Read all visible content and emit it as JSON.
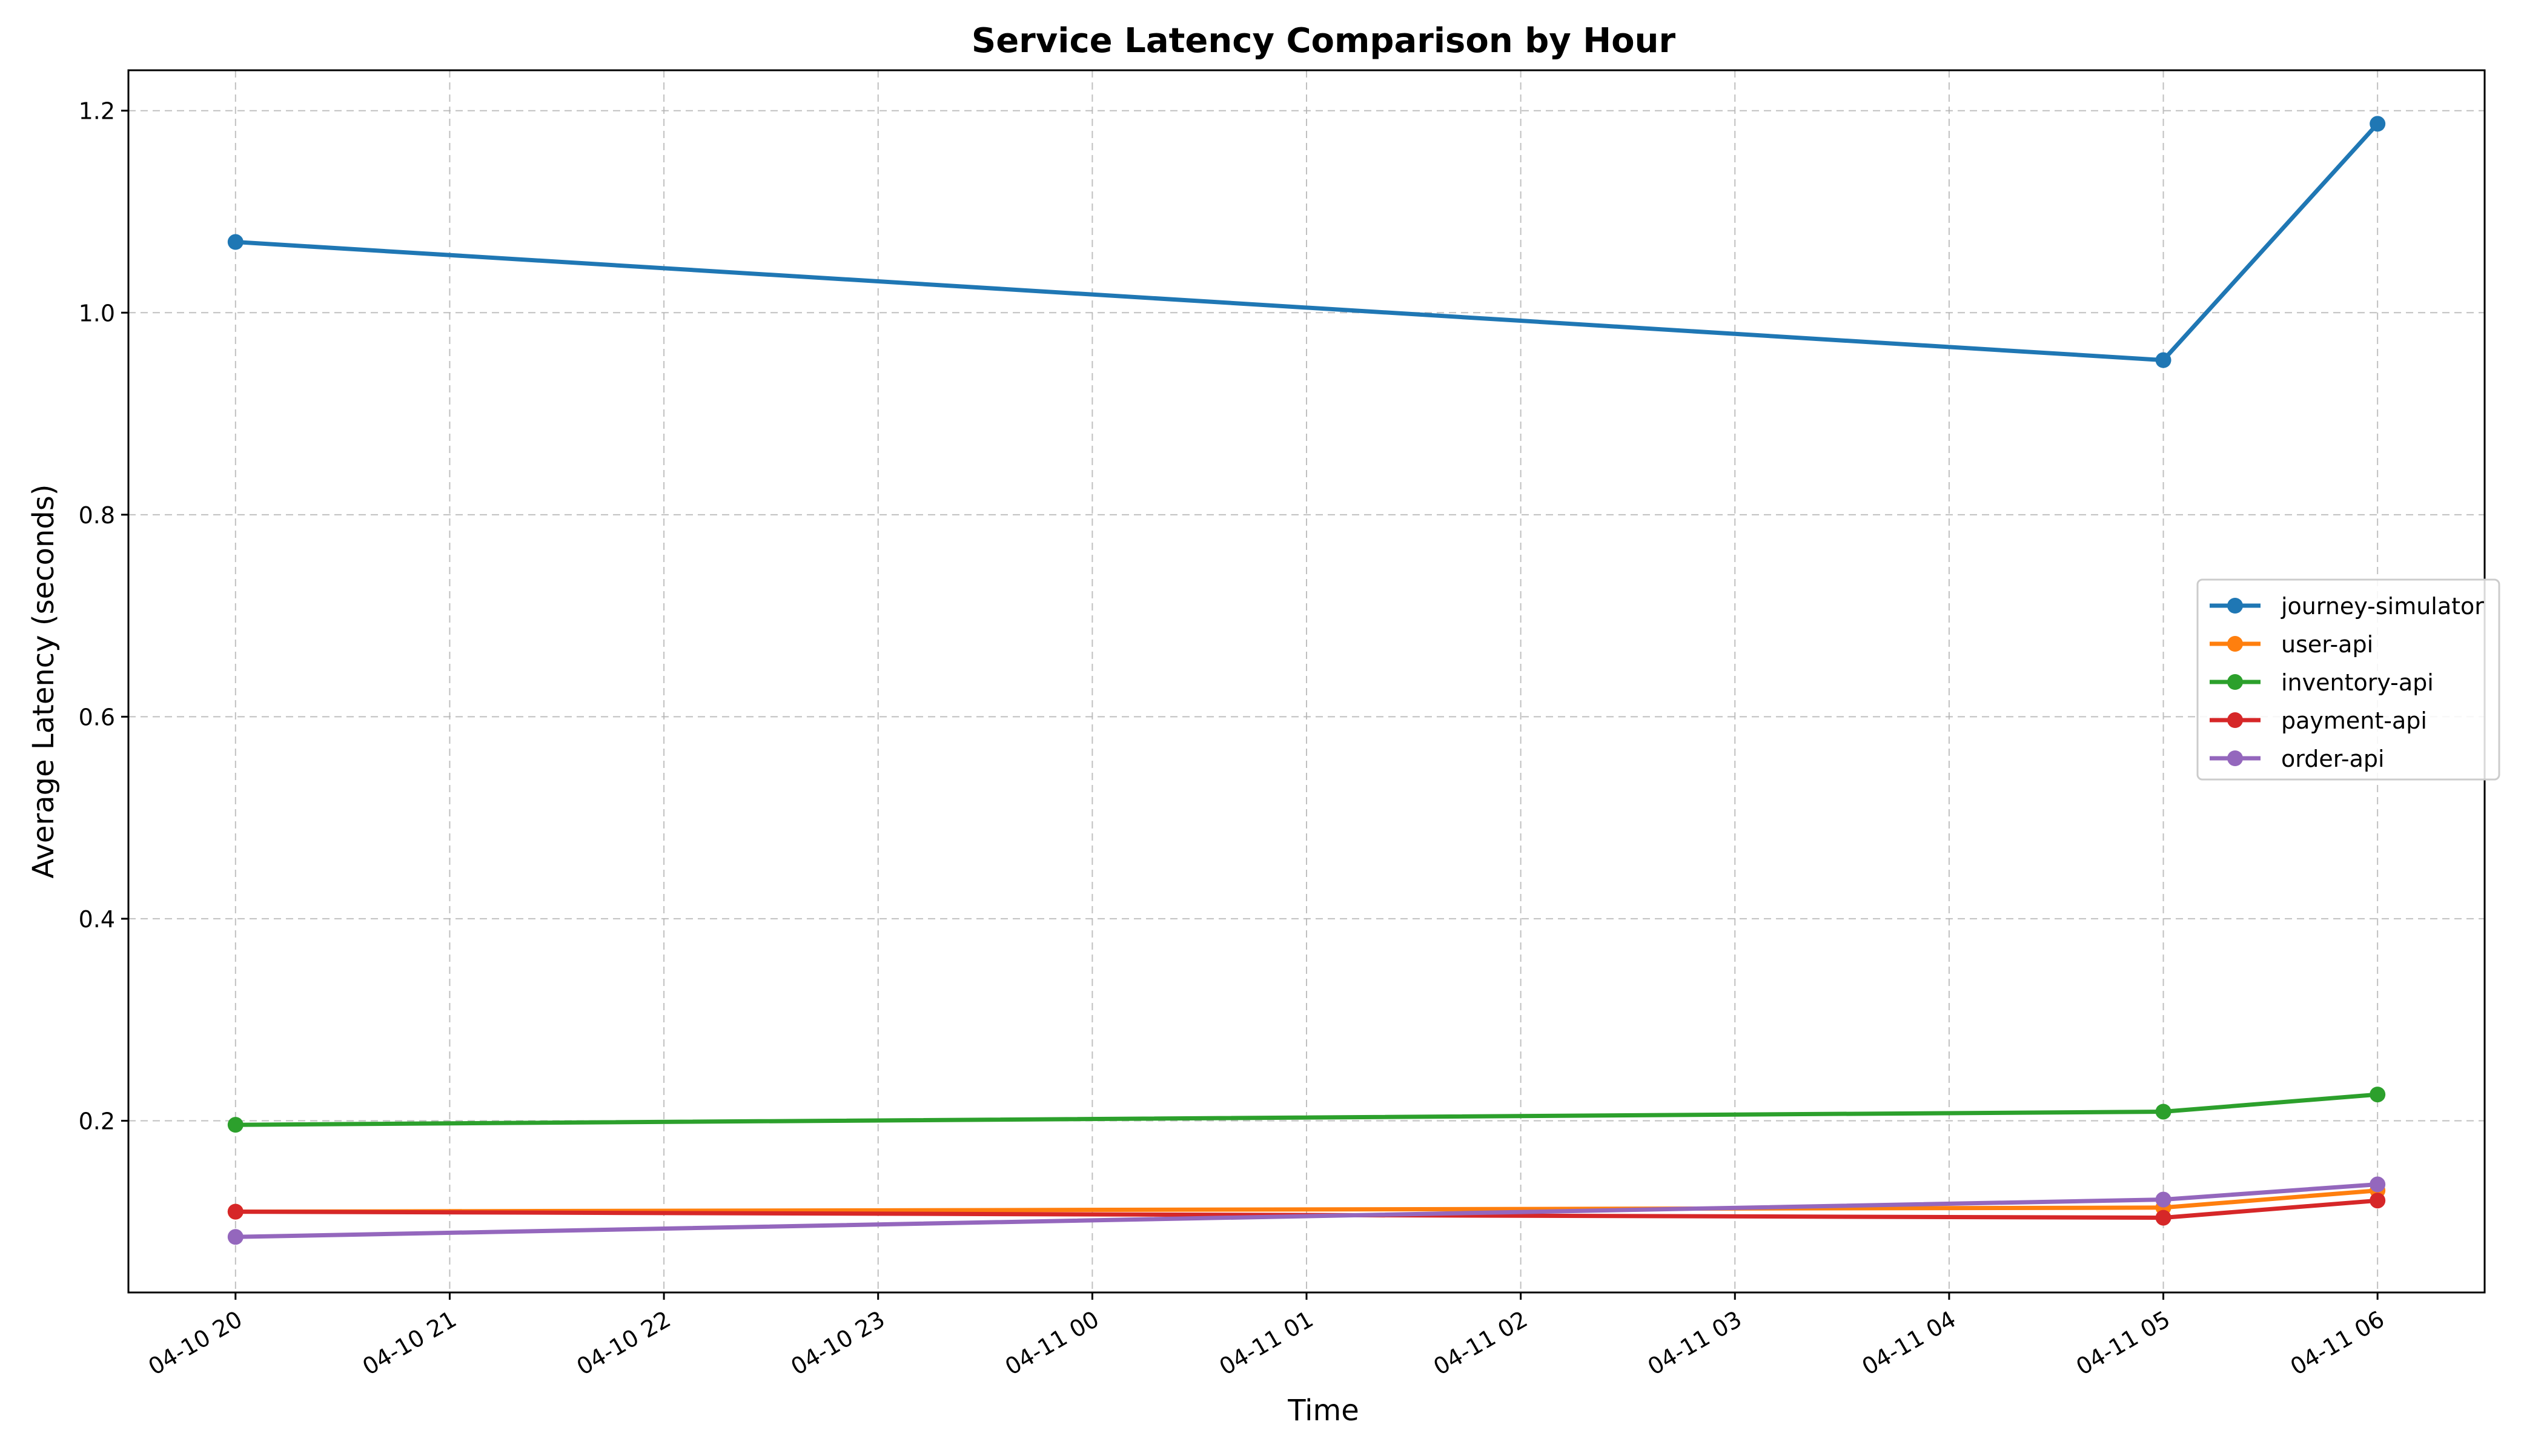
{
  "chart_data": {
    "type": "line",
    "title": "Service Latency Comparison by Hour",
    "xlabel": "Time",
    "ylabel": "Average Latency (seconds)",
    "x_tick_labels": [
      "04-10 20",
      "04-10 21",
      "04-10 22",
      "04-10 23",
      "04-11 00",
      "04-11 01",
      "04-11 02",
      "04-11 03",
      "04-11 04",
      "04-11 05",
      "04-11 06"
    ],
    "y_tick_labels": [
      "0.2",
      "0.4",
      "0.6",
      "0.8",
      "1.0",
      "1.2"
    ],
    "x_range": [
      "04-10 19:30",
      "04-11 06:30"
    ],
    "ylim": [
      0.03,
      1.24
    ],
    "grid": true,
    "legend": "center-right",
    "markers": "circle",
    "series": [
      {
        "name": "journey-simulator",
        "color": "#1f77b4",
        "points": [
          {
            "x": "04-10 20",
            "y": 1.07
          },
          {
            "x": "04-11 05",
            "y": 0.953
          },
          {
            "x": "04-11 06",
            "y": 1.187
          }
        ]
      },
      {
        "name": "user-api",
        "color": "#ff7f0e",
        "points": [
          {
            "x": "04-10 20",
            "y": 0.11
          },
          {
            "x": "04-11 05",
            "y": 0.114
          },
          {
            "x": "04-11 06",
            "y": 0.131
          }
        ]
      },
      {
        "name": "inventory-api",
        "color": "#2ca02c",
        "points": [
          {
            "x": "04-10 20",
            "y": 0.196
          },
          {
            "x": "04-11 05",
            "y": 0.209
          },
          {
            "x": "04-11 06",
            "y": 0.226
          }
        ]
      },
      {
        "name": "payment-api",
        "color": "#d62728",
        "points": [
          {
            "x": "04-10 20",
            "y": 0.11
          },
          {
            "x": "04-11 05",
            "y": 0.104
          },
          {
            "x": "04-11 06",
            "y": 0.121
          }
        ]
      },
      {
        "name": "order-api",
        "color": "#9467bd",
        "points": [
          {
            "x": "04-10 20",
            "y": 0.085
          },
          {
            "x": "04-11 05",
            "y": 0.122
          },
          {
            "x": "04-11 06",
            "y": 0.137
          }
        ]
      }
    ]
  }
}
